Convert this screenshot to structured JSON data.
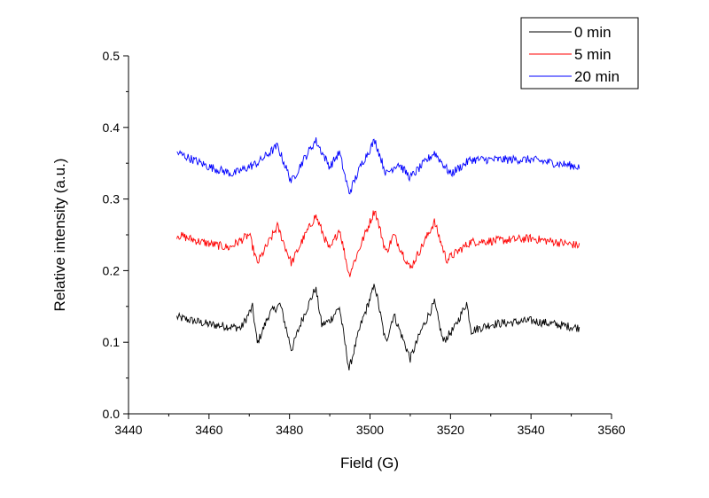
{
  "chart_data": {
    "type": "line",
    "title": "",
    "xlabel": "Field (G)",
    "ylabel": "Relative intensity (a.u.)",
    "xlim": [
      3440,
      3560
    ],
    "ylim": [
      0.0,
      0.5
    ],
    "xticks": [
      3440,
      3460,
      3480,
      3500,
      3520,
      3540,
      3560
    ],
    "xtick_labels": [
      "3440",
      "3460",
      "3480",
      "3500",
      "3520",
      "3540",
      "3560"
    ],
    "yticks": [
      0.0,
      0.1,
      0.2,
      0.3,
      0.4,
      0.5
    ],
    "ytick_labels": [
      "0.0",
      "0.1",
      "0.2",
      "0.3",
      "0.4",
      "0.5"
    ],
    "grid": false,
    "legend_position": "top-right",
    "noise_amplitude": 0.006,
    "series": [
      {
        "name": "0 min",
        "color": "#000000",
        "x": [
          3452,
          3460,
          3468,
          3470.8,
          3472,
          3475,
          3477.7,
          3480.5,
          3483,
          3486.5,
          3488,
          3490,
          3492.4,
          3494.8,
          3497.7,
          3501.2,
          3503.9,
          3505.9,
          3510,
          3513,
          3516,
          3518.2,
          3521,
          3524,
          3525.2,
          3530,
          3540,
          3552
        ],
        "y": [
          0.135,
          0.125,
          0.12,
          0.149,
          0.098,
          0.14,
          0.153,
          0.089,
          0.13,
          0.176,
          0.124,
          0.13,
          0.149,
          0.062,
          0.124,
          0.18,
          0.099,
          0.139,
          0.077,
          0.12,
          0.155,
          0.101,
          0.12,
          0.155,
          0.116,
          0.125,
          0.13,
          0.12
        ]
      },
      {
        "name": "5 min",
        "color": "#ff0000",
        "x": [
          3452,
          3458,
          3465,
          3470,
          3472,
          3477,
          3480.5,
          3483,
          3486.5,
          3490,
          3492.4,
          3494.8,
          3498,
          3501.2,
          3504,
          3505.9,
          3510,
          3513,
          3516,
          3519,
          3525,
          3532,
          3540,
          3552
        ],
        "y": [
          0.25,
          0.24,
          0.232,
          0.25,
          0.21,
          0.262,
          0.21,
          0.24,
          0.277,
          0.228,
          0.259,
          0.194,
          0.24,
          0.285,
          0.225,
          0.25,
          0.203,
          0.235,
          0.268,
          0.215,
          0.24,
          0.242,
          0.245,
          0.235
        ]
      },
      {
        "name": "20 min",
        "color": "#0000ff",
        "x": [
          3452,
          3460,
          3466,
          3472,
          3477,
          3480.5,
          3483,
          3486.5,
          3490,
          3492.4,
          3494.8,
          3498,
          3501.2,
          3504,
          3507,
          3510,
          3516,
          3520,
          3525,
          3540,
          3552
        ],
        "y": [
          0.365,
          0.345,
          0.335,
          0.35,
          0.374,
          0.324,
          0.35,
          0.382,
          0.345,
          0.365,
          0.308,
          0.35,
          0.382,
          0.335,
          0.35,
          0.33,
          0.365,
          0.335,
          0.355,
          0.355,
          0.345
        ]
      }
    ]
  }
}
